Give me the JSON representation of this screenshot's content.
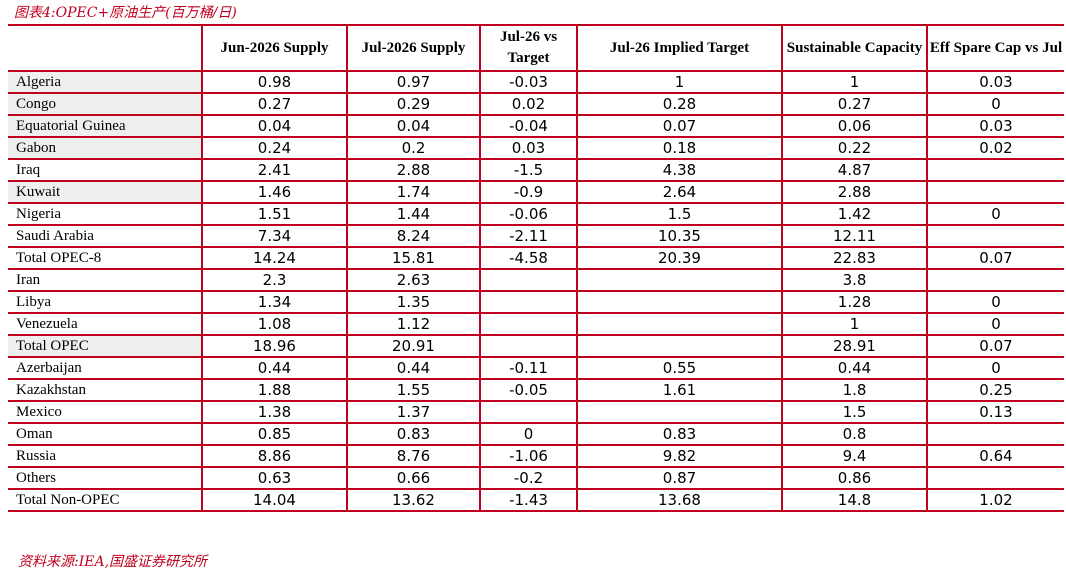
{
  "caption": "图表4:OPEC+原油生产(百万桶/日)",
  "source": "资料来源:IEA,国盛证券研究所",
  "columns": [
    "",
    "Jun-2026 Supply",
    "Jul-2026 Supply",
    "Jul-26 vs Target",
    "Jul-26 Implied Target",
    "Sustainable Capacity",
    "Eff Spare Cap vs Jul"
  ],
  "rows": [
    {
      "label": "Algeria",
      "cells": [
        "0.98",
        "0.97",
        "-0.03",
        "1",
        "1",
        "0.03"
      ]
    },
    {
      "label": "Congo",
      "cells": [
        "0.27",
        "0.29",
        "0.02",
        "0.28",
        "0.27",
        "0"
      ]
    },
    {
      "label": "Equatorial Guinea",
      "cells": [
        "0.04",
        "0.04",
        "-0.04",
        "0.07",
        "0.06",
        "0.03"
      ]
    },
    {
      "label": "Gabon",
      "cells": [
        "0.24",
        "0.2",
        "0.03",
        "0.18",
        "0.22",
        "0.02"
      ]
    },
    {
      "label": "Iraq",
      "cells": [
        "2.41",
        "2.88",
        "-1.5",
        "4.38",
        "4.87",
        ""
      ]
    },
    {
      "label": "Kuwait",
      "cells": [
        "1.46",
        "1.74",
        "-0.9",
        "2.64",
        "2.88",
        ""
      ]
    },
    {
      "label": "Nigeria",
      "cells": [
        "1.51",
        "1.44",
        "-0.06",
        "1.5",
        "1.42",
        "0"
      ]
    },
    {
      "label": "Saudi Arabia",
      "cells": [
        "7.34",
        "8.24",
        "-2.11",
        "10.35",
        "12.11",
        ""
      ]
    },
    {
      "label": "Total OPEC-8",
      "cells": [
        "14.24",
        "15.81",
        "-4.58",
        "20.39",
        "22.83",
        "0.07"
      ]
    },
    {
      "label": "Iran",
      "cells": [
        "2.3",
        "2.63",
        "",
        "",
        "3.8",
        ""
      ]
    },
    {
      "label": "Libya",
      "cells": [
        "1.34",
        "1.35",
        "",
        "",
        "1.28",
        "0"
      ]
    },
    {
      "label": "Venezuela",
      "cells": [
        "1.08",
        "1.12",
        "",
        "",
        "1",
        "0"
      ]
    },
    {
      "label": "Total OPEC",
      "cells": [
        "18.96",
        "20.91",
        "",
        "",
        "28.91",
        "0.07"
      ]
    },
    {
      "label": "Azerbaijan",
      "cells": [
        "0.44",
        "0.44",
        "-0.11",
        "0.55",
        "0.44",
        "0"
      ]
    },
    {
      "label": "Kazakhstan",
      "cells": [
        "1.88",
        "1.55",
        "-0.05",
        "1.61",
        "1.8",
        "0.25"
      ]
    },
    {
      "label": "Mexico",
      "cells": [
        "1.38",
        "1.37",
        "",
        "",
        "1.5",
        "0.13"
      ]
    },
    {
      "label": "Oman",
      "cells": [
        "0.85",
        "0.83",
        "0",
        "0.83",
        "0.8",
        ""
      ]
    },
    {
      "label": "Russia",
      "cells": [
        "8.86",
        "8.76",
        "-1.06",
        "9.82",
        "9.4",
        "0.64"
      ]
    },
    {
      "label": "Others",
      "cells": [
        "0.63",
        "0.66",
        "-0.2",
        "0.87",
        "0.86",
        ""
      ]
    },
    {
      "label": "Total Non-OPEC",
      "cells": [
        "14.04",
        "13.62",
        "-1.43",
        "13.68",
        "14.8",
        "1.02"
      ]
    }
  ]
}
